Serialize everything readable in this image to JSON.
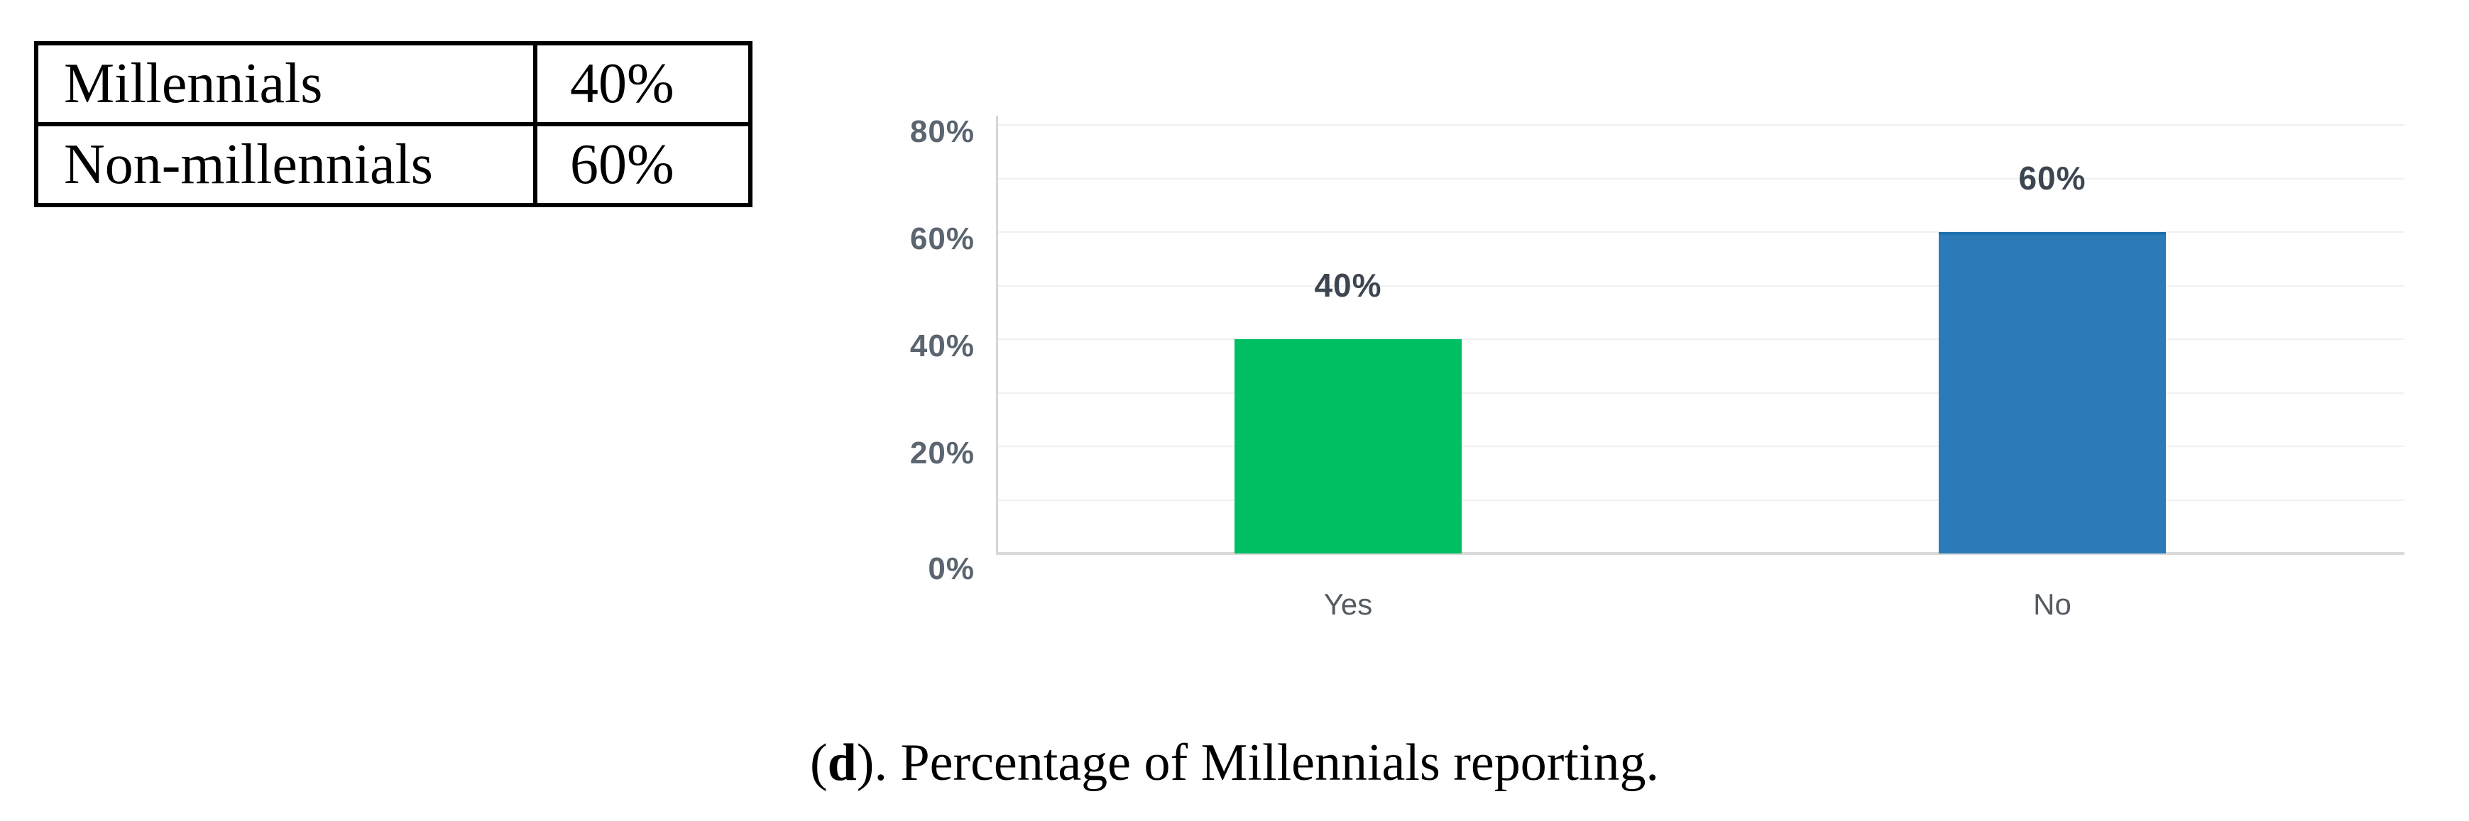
{
  "table": {
    "rows": [
      {
        "label": "Millennials",
        "value": "40%"
      },
      {
        "label": "Non-millennials",
        "value": "60%"
      }
    ]
  },
  "chart_data": {
    "type": "bar",
    "categories": [
      "Yes",
      "No"
    ],
    "values": [
      40,
      60
    ],
    "data_labels": [
      "40%",
      "60%"
    ],
    "title": "",
    "xlabel": "",
    "ylabel": "",
    "y_ticks": [
      {
        "label": "0%",
        "value": 0
      },
      {
        "label": "20%",
        "value": 20
      },
      {
        "label": "40%",
        "value": 40
      },
      {
        "label": "60%",
        "value": 60
      },
      {
        "label": "80%",
        "value": 80
      }
    ],
    "ylim": [
      0,
      81.7
    ],
    "gridline_step": 10,
    "gridline_max": 80,
    "grid": true,
    "legend": "none",
    "colors": {
      "bars": [
        "#00be62",
        "#2c7bb8"
      ],
      "bar_top_borders": [
        "",
        "#1e6fad"
      ],
      "gridline": "#f0f0f0",
      "axis_line": "#d9d9d9",
      "y_axis_line": "#d6d6d6",
      "tick_text": "#5b6570",
      "value_text": "#3d4650",
      "category_text": "#555b62"
    }
  },
  "caption": {
    "open": "(",
    "letter": "d",
    "after": "). Percentage of Millennials reporting."
  }
}
